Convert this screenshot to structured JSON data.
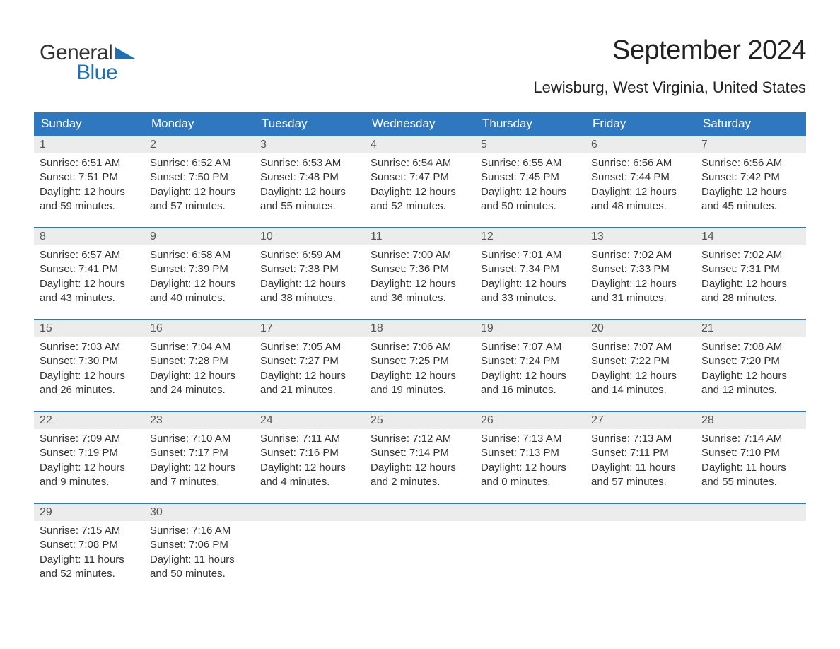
{
  "logo": {
    "word1": "General",
    "word2": "Blue",
    "triangle_color": "#1f6fb2",
    "word1_color": "#333333",
    "word2_color": "#1f6fb2"
  },
  "header": {
    "month_title": "September 2024",
    "location": "Lewisburg, West Virginia, United States"
  },
  "calendar": {
    "header_bg": "#2f78bf",
    "header_text_color": "#ffffff",
    "daynum_bg": "#ececec",
    "week_border_color": "#2f78bf",
    "days_of_week": [
      "Sunday",
      "Monday",
      "Tuesday",
      "Wednesday",
      "Thursday",
      "Friday",
      "Saturday"
    ],
    "weeks": [
      [
        {
          "n": "1",
          "sunrise": "Sunrise: 6:51 AM",
          "sunset": "Sunset: 7:51 PM",
          "d1": "Daylight: 12 hours",
          "d2": "and 59 minutes."
        },
        {
          "n": "2",
          "sunrise": "Sunrise: 6:52 AM",
          "sunset": "Sunset: 7:50 PM",
          "d1": "Daylight: 12 hours",
          "d2": "and 57 minutes."
        },
        {
          "n": "3",
          "sunrise": "Sunrise: 6:53 AM",
          "sunset": "Sunset: 7:48 PM",
          "d1": "Daylight: 12 hours",
          "d2": "and 55 minutes."
        },
        {
          "n": "4",
          "sunrise": "Sunrise: 6:54 AM",
          "sunset": "Sunset: 7:47 PM",
          "d1": "Daylight: 12 hours",
          "d2": "and 52 minutes."
        },
        {
          "n": "5",
          "sunrise": "Sunrise: 6:55 AM",
          "sunset": "Sunset: 7:45 PM",
          "d1": "Daylight: 12 hours",
          "d2": "and 50 minutes."
        },
        {
          "n": "6",
          "sunrise": "Sunrise: 6:56 AM",
          "sunset": "Sunset: 7:44 PM",
          "d1": "Daylight: 12 hours",
          "d2": "and 48 minutes."
        },
        {
          "n": "7",
          "sunrise": "Sunrise: 6:56 AM",
          "sunset": "Sunset: 7:42 PM",
          "d1": "Daylight: 12 hours",
          "d2": "and 45 minutes."
        }
      ],
      [
        {
          "n": "8",
          "sunrise": "Sunrise: 6:57 AM",
          "sunset": "Sunset: 7:41 PM",
          "d1": "Daylight: 12 hours",
          "d2": "and 43 minutes."
        },
        {
          "n": "9",
          "sunrise": "Sunrise: 6:58 AM",
          "sunset": "Sunset: 7:39 PM",
          "d1": "Daylight: 12 hours",
          "d2": "and 40 minutes."
        },
        {
          "n": "10",
          "sunrise": "Sunrise: 6:59 AM",
          "sunset": "Sunset: 7:38 PM",
          "d1": "Daylight: 12 hours",
          "d2": "and 38 minutes."
        },
        {
          "n": "11",
          "sunrise": "Sunrise: 7:00 AM",
          "sunset": "Sunset: 7:36 PM",
          "d1": "Daylight: 12 hours",
          "d2": "and 36 minutes."
        },
        {
          "n": "12",
          "sunrise": "Sunrise: 7:01 AM",
          "sunset": "Sunset: 7:34 PM",
          "d1": "Daylight: 12 hours",
          "d2": "and 33 minutes."
        },
        {
          "n": "13",
          "sunrise": "Sunrise: 7:02 AM",
          "sunset": "Sunset: 7:33 PM",
          "d1": "Daylight: 12 hours",
          "d2": "and 31 minutes."
        },
        {
          "n": "14",
          "sunrise": "Sunrise: 7:02 AM",
          "sunset": "Sunset: 7:31 PM",
          "d1": "Daylight: 12 hours",
          "d2": "and 28 minutes."
        }
      ],
      [
        {
          "n": "15",
          "sunrise": "Sunrise: 7:03 AM",
          "sunset": "Sunset: 7:30 PM",
          "d1": "Daylight: 12 hours",
          "d2": "and 26 minutes."
        },
        {
          "n": "16",
          "sunrise": "Sunrise: 7:04 AM",
          "sunset": "Sunset: 7:28 PM",
          "d1": "Daylight: 12 hours",
          "d2": "and 24 minutes."
        },
        {
          "n": "17",
          "sunrise": "Sunrise: 7:05 AM",
          "sunset": "Sunset: 7:27 PM",
          "d1": "Daylight: 12 hours",
          "d2": "and 21 minutes."
        },
        {
          "n": "18",
          "sunrise": "Sunrise: 7:06 AM",
          "sunset": "Sunset: 7:25 PM",
          "d1": "Daylight: 12 hours",
          "d2": "and 19 minutes."
        },
        {
          "n": "19",
          "sunrise": "Sunrise: 7:07 AM",
          "sunset": "Sunset: 7:24 PM",
          "d1": "Daylight: 12 hours",
          "d2": "and 16 minutes."
        },
        {
          "n": "20",
          "sunrise": "Sunrise: 7:07 AM",
          "sunset": "Sunset: 7:22 PM",
          "d1": "Daylight: 12 hours",
          "d2": "and 14 minutes."
        },
        {
          "n": "21",
          "sunrise": "Sunrise: 7:08 AM",
          "sunset": "Sunset: 7:20 PM",
          "d1": "Daylight: 12 hours",
          "d2": "and 12 minutes."
        }
      ],
      [
        {
          "n": "22",
          "sunrise": "Sunrise: 7:09 AM",
          "sunset": "Sunset: 7:19 PM",
          "d1": "Daylight: 12 hours",
          "d2": "and 9 minutes."
        },
        {
          "n": "23",
          "sunrise": "Sunrise: 7:10 AM",
          "sunset": "Sunset: 7:17 PM",
          "d1": "Daylight: 12 hours",
          "d2": "and 7 minutes."
        },
        {
          "n": "24",
          "sunrise": "Sunrise: 7:11 AM",
          "sunset": "Sunset: 7:16 PM",
          "d1": "Daylight: 12 hours",
          "d2": "and 4 minutes."
        },
        {
          "n": "25",
          "sunrise": "Sunrise: 7:12 AM",
          "sunset": "Sunset: 7:14 PM",
          "d1": "Daylight: 12 hours",
          "d2": "and 2 minutes."
        },
        {
          "n": "26",
          "sunrise": "Sunrise: 7:13 AM",
          "sunset": "Sunset: 7:13 PM",
          "d1": "Daylight: 12 hours",
          "d2": "and 0 minutes."
        },
        {
          "n": "27",
          "sunrise": "Sunrise: 7:13 AM",
          "sunset": "Sunset: 7:11 PM",
          "d1": "Daylight: 11 hours",
          "d2": "and 57 minutes."
        },
        {
          "n": "28",
          "sunrise": "Sunrise: 7:14 AM",
          "sunset": "Sunset: 7:10 PM",
          "d1": "Daylight: 11 hours",
          "d2": "and 55 minutes."
        }
      ],
      [
        {
          "n": "29",
          "sunrise": "Sunrise: 7:15 AM",
          "sunset": "Sunset: 7:08 PM",
          "d1": "Daylight: 11 hours",
          "d2": "and 52 minutes."
        },
        {
          "n": "30",
          "sunrise": "Sunrise: 7:16 AM",
          "sunset": "Sunset: 7:06 PM",
          "d1": "Daylight: 11 hours",
          "d2": "and 50 minutes."
        },
        {
          "n": "",
          "sunrise": "",
          "sunset": "",
          "d1": "",
          "d2": ""
        },
        {
          "n": "",
          "sunrise": "",
          "sunset": "",
          "d1": "",
          "d2": ""
        },
        {
          "n": "",
          "sunrise": "",
          "sunset": "",
          "d1": "",
          "d2": ""
        },
        {
          "n": "",
          "sunrise": "",
          "sunset": "",
          "d1": "",
          "d2": ""
        },
        {
          "n": "",
          "sunrise": "",
          "sunset": "",
          "d1": "",
          "d2": ""
        }
      ]
    ]
  }
}
